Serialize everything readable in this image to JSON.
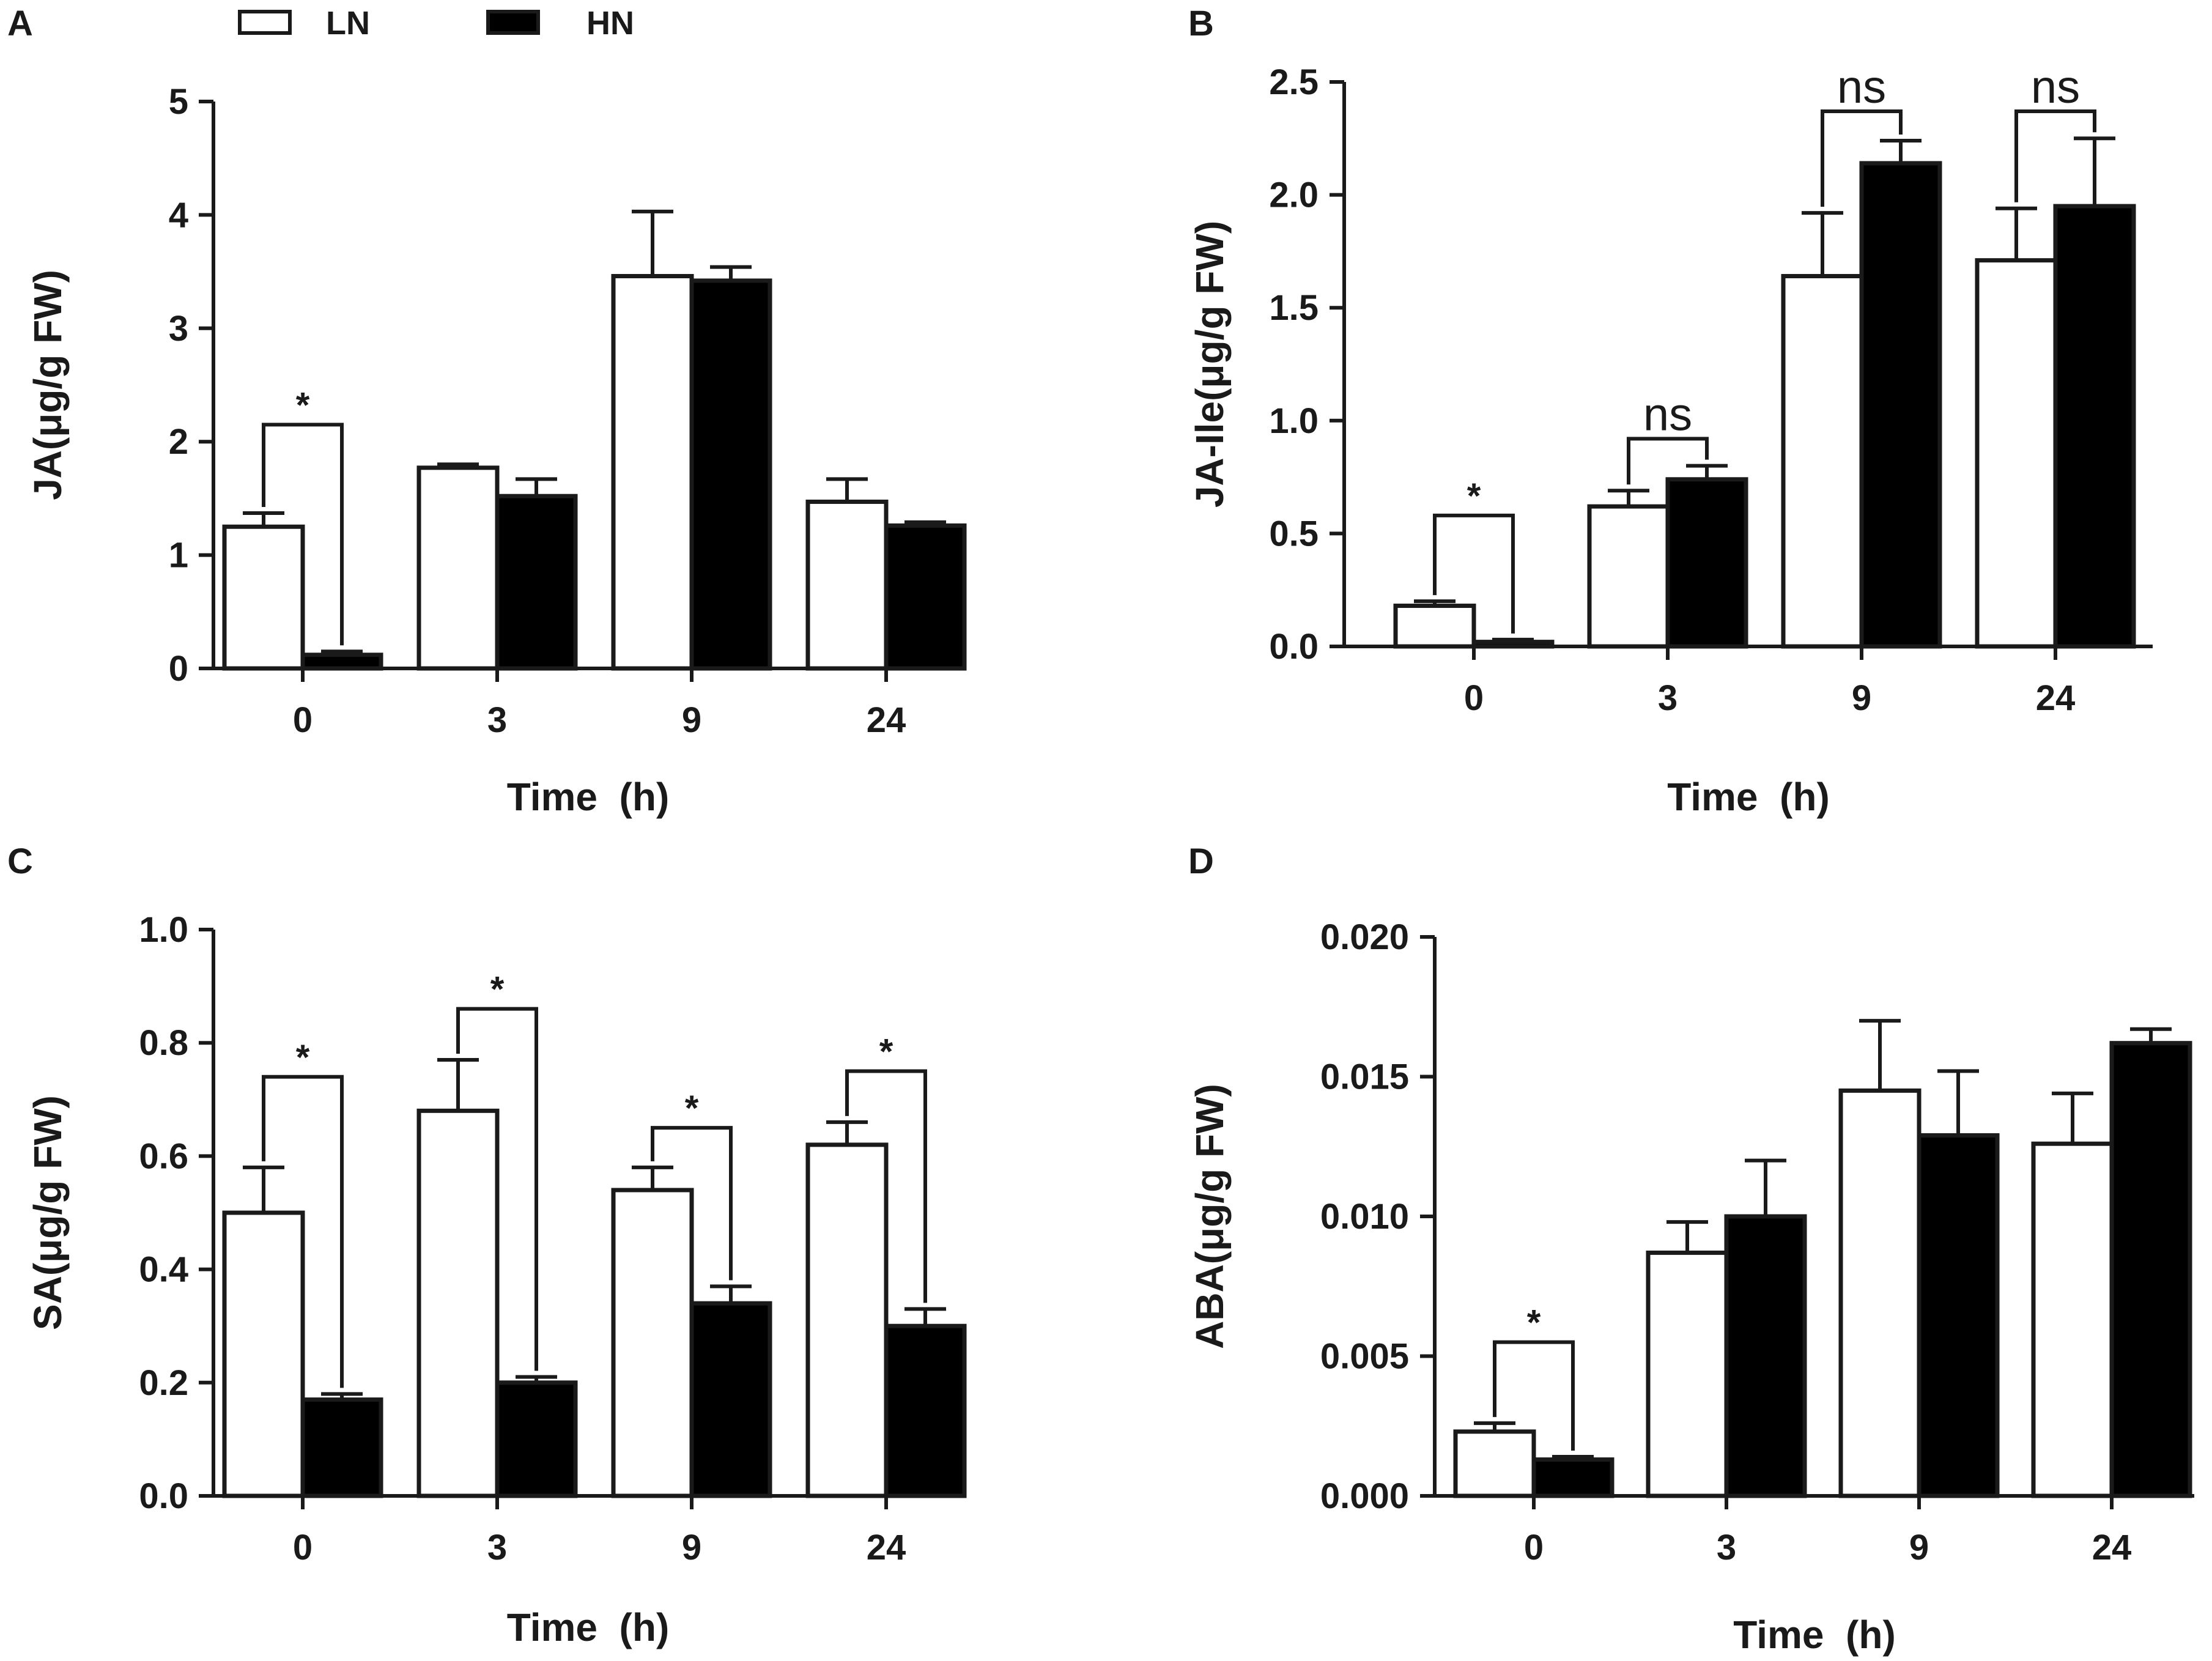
{
  "legend": {
    "items": [
      {
        "label": "LN",
        "color": "#ffffff"
      },
      {
        "label": "HN",
        "color": "#000000"
      }
    ]
  },
  "chart_data": [
    {
      "panel": "A",
      "type": "bar",
      "title": "",
      "xlabel": "Time  (h)",
      "ylabel": "JA(μg/g FW)",
      "categories": [
        "0",
        "3",
        "9",
        "24"
      ],
      "ylim": [
        0,
        5
      ],
      "yticks": [
        "0",
        "1",
        "2",
        "3",
        "4",
        "5"
      ],
      "ytick_values": [
        0,
        1,
        2,
        3,
        4,
        5
      ],
      "series": [
        {
          "name": "LN",
          "values": [
            1.25,
            1.77,
            3.46,
            1.47
          ],
          "errors": [
            0.12,
            0.03,
            0.57,
            0.2
          ]
        },
        {
          "name": "HN",
          "values": [
            0.12,
            1.52,
            3.42,
            1.26
          ],
          "errors": [
            0.03,
            0.15,
            0.12,
            0.03
          ]
        }
      ],
      "significance": [
        {
          "category": "0",
          "label": "*",
          "bracket_top": 2.15
        }
      ]
    },
    {
      "panel": "B",
      "type": "bar",
      "title": "",
      "xlabel": "Time  (h)",
      "ylabel": "JA-Ile(μg/g FW)",
      "categories": [
        "0",
        "3",
        "9",
        "24"
      ],
      "ylim": [
        0,
        2.5
      ],
      "yticks": [
        "0.0",
        "0.5",
        "1.0",
        "1.5",
        "2.0",
        "2.5"
      ],
      "ytick_values": [
        0,
        0.5,
        1.0,
        1.5,
        2.0,
        2.5
      ],
      "series": [
        {
          "name": "LN",
          "values": [
            0.18,
            0.62,
            1.64,
            1.71
          ],
          "errors": [
            0.02,
            0.07,
            0.28,
            0.23
          ]
        },
        {
          "name": "HN",
          "values": [
            0.02,
            0.74,
            2.14,
            1.95
          ],
          "errors": [
            0.01,
            0.06,
            0.1,
            0.3
          ]
        }
      ],
      "significance": [
        {
          "category": "0",
          "label": "*",
          "bracket_top": 0.58
        },
        {
          "category": "3",
          "label": "ns",
          "bracket_top": 0.92
        },
        {
          "category": "9",
          "label": "ns",
          "bracket_top": 2.37
        },
        {
          "category": "24",
          "label": "ns",
          "bracket_top": 2.37
        }
      ]
    },
    {
      "panel": "C",
      "type": "bar",
      "title": "",
      "xlabel": "Time  (h)",
      "ylabel": "SA(μg/g FW)",
      "categories": [
        "0",
        "3",
        "9",
        "24"
      ],
      "ylim": [
        0,
        1.0
      ],
      "yticks": [
        "0.0",
        "0.2",
        "0.4",
        "0.6",
        "0.8",
        "1.0"
      ],
      "ytick_values": [
        0,
        0.2,
        0.4,
        0.6,
        0.8,
        1.0
      ],
      "series": [
        {
          "name": "LN",
          "values": [
            0.5,
            0.68,
            0.54,
            0.62
          ],
          "errors": [
            0.08,
            0.09,
            0.04,
            0.04
          ]
        },
        {
          "name": "HN",
          "values": [
            0.17,
            0.2,
            0.34,
            0.3
          ],
          "errors": [
            0.01,
            0.01,
            0.03,
            0.03
          ]
        }
      ],
      "significance": [
        {
          "category": "0",
          "label": "*",
          "bracket_top": 0.74
        },
        {
          "category": "3",
          "label": "*",
          "bracket_top": 0.86
        },
        {
          "category": "9",
          "label": "*",
          "bracket_top": 0.65
        },
        {
          "category": "24",
          "label": "*",
          "bracket_top": 0.75
        }
      ]
    },
    {
      "panel": "D",
      "type": "bar",
      "title": "",
      "xlabel": "Time  (h)",
      "ylabel": "ABA(μg/g FW)",
      "categories": [
        "0",
        "3",
        "9",
        "24"
      ],
      "ylim": [
        0,
        0.02
      ],
      "yticks": [
        "0.000",
        "0.005",
        "0.010",
        "0.015",
        "0.020"
      ],
      "ytick_values": [
        0,
        0.005,
        0.01,
        0.015,
        0.02
      ],
      "series": [
        {
          "name": "LN",
          "values": [
            0.0023,
            0.0087,
            0.0145,
            0.0126
          ],
          "errors": [
            0.0003,
            0.0011,
            0.0025,
            0.0018
          ]
        },
        {
          "name": "HN",
          "values": [
            0.0013,
            0.01,
            0.0129,
            0.0162
          ],
          "errors": [
            0.0001,
            0.002,
            0.0023,
            0.0005
          ]
        }
      ],
      "significance": [
        {
          "category": "0",
          "label": "*",
          "bracket_top": 0.0055
        }
      ]
    }
  ]
}
